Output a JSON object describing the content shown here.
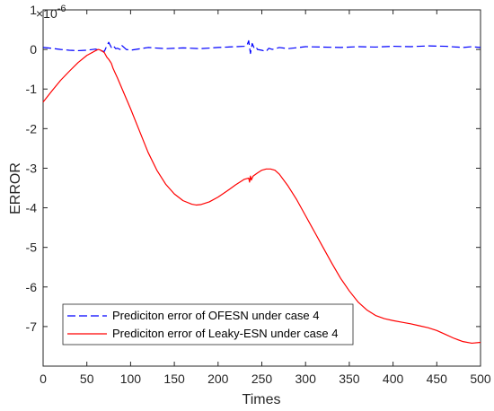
{
  "chart_data": {
    "type": "line",
    "title": "",
    "xlabel": "Times",
    "ylabel": "ERROR",
    "exponent_label": "×10",
    "exponent_power": "-6",
    "xlim": [
      0,
      500
    ],
    "ylim": [
      -8,
      1
    ],
    "xticks": [
      0,
      50,
      100,
      150,
      200,
      250,
      300,
      350,
      400,
      450,
      500
    ],
    "yticks": [
      -7,
      -6,
      -5,
      -4,
      -3,
      -2,
      -1,
      0,
      1
    ],
    "grid": false,
    "legend_position": "lower-left",
    "series": [
      {
        "name": "Prediciton error of  OFESN under case 4",
        "color": "#0000ff",
        "style": "dashed",
        "x": [
          0,
          10,
          20,
          30,
          40,
          50,
          60,
          65,
          70,
          73,
          75,
          78,
          80,
          83,
          85,
          88,
          90,
          95,
          100,
          120,
          140,
          160,
          180,
          200,
          220,
          230,
          233,
          235,
          237,
          239,
          241,
          243,
          245,
          250,
          255,
          258,
          262,
          270,
          280,
          300,
          320,
          340,
          360,
          380,
          400,
          420,
          440,
          460,
          480,
          490,
          500
        ],
        "y": [
          0.05,
          0.03,
          0.0,
          -0.02,
          -0.03,
          -0.02,
          0.01,
          -0.03,
          -0.05,
          0.1,
          0.18,
          0.05,
          0.1,
          0.02,
          0.03,
          0.0,
          0.1,
          0.0,
          -0.02,
          0.05,
          0.02,
          0.04,
          0.02,
          0.05,
          0.07,
          0.08,
          0.1,
          0.22,
          -0.1,
          0.15,
          0.05,
          0.08,
          0.0,
          -0.02,
          -0.05,
          0.03,
          0.0,
          0.05,
          0.02,
          0.07,
          0.06,
          0.05,
          0.07,
          0.06,
          0.08,
          0.07,
          0.09,
          0.08,
          0.05,
          0.07,
          0.05
        ]
      },
      {
        "name": "Prediciton error of  Leaky-ESN under case 4",
        "color": "#ff0000",
        "style": "solid",
        "x": [
          0,
          10,
          20,
          30,
          40,
          50,
          60,
          63,
          66,
          70,
          73,
          75,
          78,
          80,
          85,
          90,
          100,
          110,
          120,
          130,
          140,
          150,
          160,
          170,
          175,
          180,
          190,
          200,
          210,
          220,
          230,
          235,
          236,
          237,
          238,
          240,
          245,
          250,
          255,
          260,
          265,
          270,
          280,
          290,
          300,
          310,
          320,
          330,
          340,
          350,
          360,
          370,
          380,
          390,
          400,
          410,
          420,
          430,
          440,
          450,
          460,
          470,
          480,
          490,
          500
        ],
        "y": [
          -1.33,
          -1.05,
          -0.78,
          -0.55,
          -0.33,
          -0.15,
          -0.03,
          0.0,
          -0.02,
          -0.08,
          -0.2,
          -0.25,
          -0.35,
          -0.48,
          -0.72,
          -0.98,
          -1.5,
          -2.05,
          -2.6,
          -3.05,
          -3.4,
          -3.65,
          -3.82,
          -3.91,
          -3.93,
          -3.92,
          -3.85,
          -3.73,
          -3.58,
          -3.42,
          -3.28,
          -3.25,
          -3.35,
          -3.2,
          -3.3,
          -3.2,
          -3.12,
          -3.05,
          -3.02,
          -3.02,
          -3.05,
          -3.15,
          -3.45,
          -3.8,
          -4.2,
          -4.6,
          -5.0,
          -5.4,
          -5.78,
          -6.1,
          -6.38,
          -6.58,
          -6.72,
          -6.8,
          -6.85,
          -6.89,
          -6.93,
          -6.98,
          -7.03,
          -7.1,
          -7.2,
          -7.3,
          -7.38,
          -7.42,
          -7.4
        ]
      }
    ]
  }
}
